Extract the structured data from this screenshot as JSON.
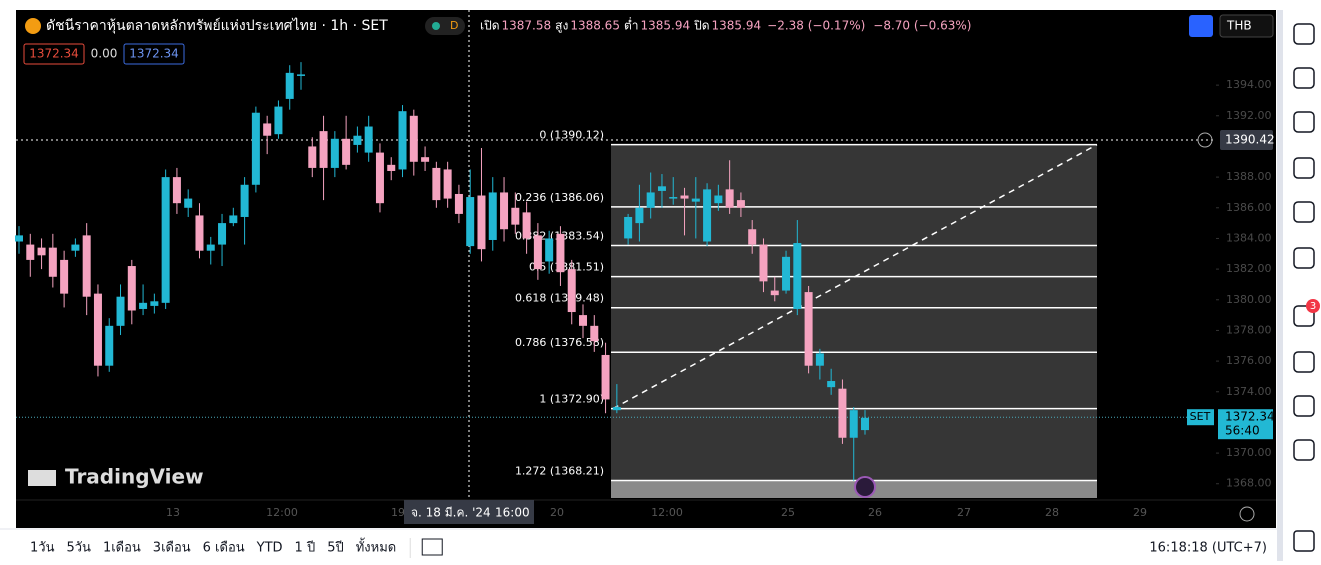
{
  "header": {
    "title": "ดัชนีราคาหุ้นตลาดหลักทรัพย์แห่งประเทศไทย · 1h · SET",
    "badge": "D",
    "ohlc": [
      {
        "label": "เปิด",
        "value": "1387.58"
      },
      {
        "label": "สูง",
        "value": "1388.65"
      },
      {
        "label": "ต่ำ",
        "value": "1385.94"
      },
      {
        "label": "ปิด",
        "value": "1385.94"
      }
    ],
    "change": "−2.38 (−0.17%)",
    "change2": "−8.70 (−0.63%)",
    "bid": "1372.34",
    "spread": "0.00",
    "ask": "1372.34",
    "currency": "THB"
  },
  "chart_data": {
    "type": "candlestick",
    "up_color": "#22b8d4",
    "down_color": "#f5a3c0",
    "candles": [
      {
        "open": 1383.8,
        "high": 1384.8,
        "low": 1383.0,
        "close": 1384.2
      },
      {
        "open": 1383.6,
        "high": 1384.3,
        "low": 1381.5,
        "close": 1382.6
      },
      {
        "open": 1383.4,
        "high": 1384,
        "low": 1382,
        "close": 1382.9
      },
      {
        "open": 1383.4,
        "high": 1384.3,
        "low": 1380.8,
        "close": 1381.5
      },
      {
        "open": 1382.6,
        "high": 1383.2,
        "low": 1379.5,
        "close": 1380.4
      },
      {
        "open": 1383.2,
        "high": 1384,
        "low": 1382.8,
        "close": 1383.6
      },
      {
        "open": 1384.2,
        "high": 1385,
        "low": 1379,
        "close": 1380.2
      },
      {
        "open": 1380.4,
        "high": 1381,
        "low": 1375,
        "close": 1375.7
      },
      {
        "open": 1375.7,
        "high": 1378.8,
        "low": 1375.3,
        "close": 1378.3
      },
      {
        "open": 1378.3,
        "high": 1381,
        "low": 1377.7,
        "close": 1380.2
      },
      {
        "open": 1382.2,
        "high": 1382.6,
        "low": 1378.4,
        "close": 1379.3
      },
      {
        "open": 1379.4,
        "high": 1381,
        "low": 1379,
        "close": 1379.8
      },
      {
        "open": 1379.6,
        "high": 1380.4,
        "low": 1379.1,
        "close": 1379.9
      },
      {
        "open": 1379.8,
        "high": 1388.5,
        "low": 1379.4,
        "close": 1388
      },
      {
        "open": 1388,
        "high": 1388.6,
        "low": 1385.6,
        "close": 1386.3
      },
      {
        "open": 1386,
        "high": 1387.2,
        "low": 1385.4,
        "close": 1386.6
      },
      {
        "open": 1385.5,
        "high": 1386.3,
        "low": 1382.7,
        "close": 1383.2
      },
      {
        "open": 1383.2,
        "high": 1384.1,
        "low": 1382.3,
        "close": 1383.6
      },
      {
        "open": 1383.6,
        "high": 1385.6,
        "low": 1382.2,
        "close": 1385
      },
      {
        "open": 1385,
        "high": 1386,
        "low": 1384.8,
        "close": 1385.5
      },
      {
        "open": 1385.4,
        "high": 1388,
        "low": 1383.6,
        "close": 1387.5
      },
      {
        "open": 1387.5,
        "high": 1392.6,
        "low": 1387,
        "close": 1392.2
      },
      {
        "open": 1391.5,
        "high": 1392,
        "low": 1389.5,
        "close": 1390.7
      },
      {
        "open": 1390.8,
        "high": 1393,
        "low": 1390.5,
        "close": 1392.6
      },
      {
        "open": 1393.1,
        "high": 1395.3,
        "low": 1392.4,
        "close": 1394.8
      },
      {
        "open": 1394.6,
        "high": 1395.5,
        "low": 1393.7,
        "close": 1394.7
      },
      {
        "open": 1390,
        "high": 1390.6,
        "low": 1388,
        "close": 1388.6
      },
      {
        "open": 1391,
        "high": 1392,
        "low": 1386.5,
        "close": 1388.6
      },
      {
        "open": 1388.6,
        "high": 1391,
        "low": 1388,
        "close": 1390.5
      },
      {
        "open": 1390.5,
        "high": 1392,
        "low": 1388.5,
        "close": 1388.8
      },
      {
        "open": 1390.1,
        "high": 1391.3,
        "low": 1389.6,
        "close": 1390.7
      },
      {
        "open": 1389.6,
        "high": 1392,
        "low": 1389,
        "close": 1391.3
      },
      {
        "open": 1389.6,
        "high": 1390.2,
        "low": 1385.7,
        "close": 1386.3
      },
      {
        "open": 1388.8,
        "high": 1389.3,
        "low": 1387.8,
        "close": 1388.4
      },
      {
        "open": 1388.5,
        "high": 1392.7,
        "low": 1388,
        "close": 1392.3
      },
      {
        "open": 1392,
        "high": 1392.4,
        "low": 1388.1,
        "close": 1389
      },
      {
        "open": 1389.3,
        "high": 1390,
        "low": 1388.4,
        "close": 1389
      },
      {
        "open": 1388.6,
        "high": 1389,
        "low": 1386,
        "close": 1386.5
      },
      {
        "open": 1388.5,
        "high": 1389,
        "low": 1386,
        "close": 1386.6
      },
      {
        "open": 1386.9,
        "high": 1387.5,
        "low": 1385,
        "close": 1385.6
      },
      {
        "open": 1383.5,
        "high": 1388.5,
        "low": 1383,
        "close": 1386.7
      },
      {
        "open": 1386.8,
        "high": 1389.9,
        "low": 1382.5,
        "close": 1383.3
      },
      {
        "open": 1383.9,
        "high": 1388,
        "low": 1383.2,
        "close": 1387
      },
      {
        "open": 1387,
        "high": 1388,
        "low": 1383.8,
        "close": 1384.6
      },
      {
        "open": 1386,
        "high": 1387,
        "low": 1384.3,
        "close": 1384.9
      },
      {
        "open": 1385.7,
        "high": 1386.4,
        "low": 1383,
        "close": 1384
      },
      {
        "open": 1384.2,
        "high": 1385,
        "low": 1381.3,
        "close": 1382
      },
      {
        "open": 1382.5,
        "high": 1384.5,
        "low": 1381.7,
        "close": 1384
      },
      {
        "open": 1384.3,
        "high": 1384.8,
        "low": 1380.9,
        "close": 1381.8
      },
      {
        "open": 1382,
        "high": 1382.6,
        "low": 1378.4,
        "close": 1379.2
      },
      {
        "open": 1379,
        "high": 1379.7,
        "low": 1377.5,
        "close": 1378.3
      },
      {
        "open": 1378.3,
        "high": 1379,
        "low": 1376.6,
        "close": 1377.3
      },
      {
        "open": 1376.4,
        "high": 1377.2,
        "low": 1372.6,
        "close": 1373.5
      },
      {
        "open": 1372.8,
        "high": 1374.5,
        "low": 1372.6,
        "close": 1373
      },
      {
        "open": 1384,
        "high": 1385.6,
        "low": 1383.6,
        "close": 1385.4
      },
      {
        "open": 1385,
        "high": 1387.5,
        "low": 1383.8,
        "close": 1386
      },
      {
        "open": 1386,
        "high": 1388.3,
        "low": 1385.3,
        "close": 1387
      },
      {
        "open": 1387.1,
        "high": 1388.2,
        "low": 1386,
        "close": 1387.4
      },
      {
        "open": 1386.6,
        "high": 1388,
        "low": 1386.2,
        "close": 1386.7
      },
      {
        "open": 1386.8,
        "high": 1387.3,
        "low": 1384.2,
        "close": 1386.6
      },
      {
        "open": 1386.4,
        "high": 1388,
        "low": 1384,
        "close": 1386.6
      },
      {
        "open": 1383.8,
        "high": 1387.6,
        "low": 1383.5,
        "close": 1387.2
      },
      {
        "open": 1386.3,
        "high": 1387.5,
        "low": 1385.8,
        "close": 1386.8
      },
      {
        "open": 1387.2,
        "high": 1389.1,
        "low": 1385.6,
        "close": 1386
      },
      {
        "open": 1386.5,
        "high": 1387,
        "low": 1385.4,
        "close": 1386
      },
      {
        "open": 1384.6,
        "high": 1385.2,
        "low": 1383,
        "close": 1383.6
      },
      {
        "open": 1383.6,
        "high": 1384,
        "low": 1380.5,
        "close": 1381.2
      },
      {
        "open": 1380.6,
        "high": 1381.5,
        "low": 1379.9,
        "close": 1380.3
      },
      {
        "open": 1380.6,
        "high": 1383.2,
        "low": 1380.4,
        "close": 1382.8
      },
      {
        "open": 1379.4,
        "high": 1385.2,
        "low": 1379,
        "close": 1383.7
      },
      {
        "open": 1380.5,
        "high": 1380.9,
        "low": 1375.2,
        "close": 1375.7
      },
      {
        "open": 1375.7,
        "high": 1376.8,
        "low": 1374.8,
        "close": 1376.5
      },
      {
        "open": 1374.3,
        "high": 1375.5,
        "low": 1373.8,
        "close": 1374.7
      },
      {
        "open": 1374.2,
        "high": 1374.8,
        "low": 1370.6,
        "close": 1371
      },
      {
        "open": 1371,
        "high": 1373,
        "low": 1368.2,
        "close": 1372.8
      },
      {
        "open": 1371.5,
        "high": 1372.8,
        "low": 1371.2,
        "close": 1372.3
      }
    ],
    "ylim": [
      1366.94,
      1398.9
    ],
    "yticks": [
      {
        "value": 1368,
        "label": "1368.00"
      },
      {
        "value": 1370,
        "label": "1370.00"
      },
      {
        "value": 1374,
        "label": "1374.00"
      },
      {
        "value": 1376,
        "label": "1376.00"
      },
      {
        "value": 1378,
        "label": "1378.00"
      },
      {
        "value": 1380,
        "label": "1380.00"
      },
      {
        "value": 1382,
        "label": "1382.00"
      },
      {
        "value": 1384,
        "label": "1384.00"
      },
      {
        "value": 1386,
        "label": "1386.00"
      },
      {
        "value": 1388,
        "label": "1388.00"
      },
      {
        "value": 1392,
        "label": "1392.00"
      },
      {
        "value": 1394,
        "label": "1394.00"
      }
    ],
    "x_labels": [
      "13",
      "12:00",
      "19",
      "20",
      "12:00",
      "25",
      "26",
      "27",
      "28",
      "29"
    ],
    "fib": [
      {
        "price": 1390.12,
        "label": "0 (1390.12)"
      },
      {
        "price": 1386.06,
        "label": "0.236 (1386.06)"
      },
      {
        "price": 1383.54,
        "label": "0.382 (1383.54)"
      },
      {
        "price": 1381.51,
        "label": "0.5 (1381.51)"
      },
      {
        "price": 1379.48,
        "label": "0.618 (1379.48)"
      },
      {
        "price": 1376.58,
        "label": "0.786 (1376.58)"
      },
      {
        "price": 1372.9,
        "label": "1 (1372.90)"
      },
      {
        "price": 1368.21,
        "label": "1.272 (1368.21)"
      }
    ],
    "crosshair": {
      "price": 1390.42,
      "label": "1390.42",
      "time": "จ. 18 มี.ค. '24",
      "time2": "16:00"
    },
    "last": {
      "price": 1372.34,
      "label": "1372.34",
      "symbol": "SET",
      "countdown": "56:40"
    },
    "logo": "TradingView"
  },
  "footer": {
    "ranges": [
      "1วัน",
      "5วัน",
      "1เดือน",
      "3เดือน",
      "6 เดือน",
      "YTD",
      "1 ปี",
      "5ปี",
      "ทั้งหมด"
    ],
    "clock": "16:18:18 (UTC+7)"
  },
  "sidebar": {
    "badge": "3"
  }
}
